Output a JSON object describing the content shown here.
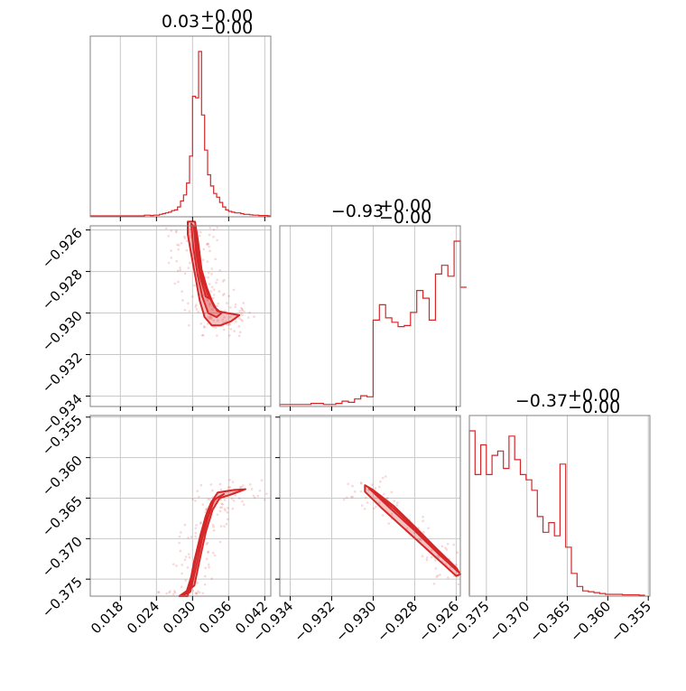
{
  "chart_data": {
    "type": "corner",
    "color": "#d62728",
    "grid": true,
    "parameters": [
      {
        "title": "0.03",
        "title_plus": "+0.00",
        "title_minus": "−0.00",
        "range": [
          0.013,
          0.043
        ],
        "ticks": [
          0.018,
          0.024,
          0.03,
          0.036,
          0.042
        ],
        "tick_labels": [
          "0.018",
          "0.024",
          "0.030",
          "0.036",
          "0.042"
        ],
        "hist": [
          [
            0.013,
            0
          ],
          [
            0.0135,
            0
          ],
          [
            0.014,
            0
          ],
          [
            0.0145,
            0
          ],
          [
            0.015,
            0
          ],
          [
            0.0155,
            0
          ],
          [
            0.016,
            0
          ],
          [
            0.0165,
            0
          ],
          [
            0.017,
            0
          ],
          [
            0.0175,
            0
          ],
          [
            0.018,
            0
          ],
          [
            0.0185,
            0
          ],
          [
            0.019,
            0
          ],
          [
            0.0195,
            0
          ],
          [
            0.02,
            0
          ],
          [
            0.0205,
            0
          ],
          [
            0.021,
            0
          ],
          [
            0.0215,
            0
          ],
          [
            0.022,
            1
          ],
          [
            0.0225,
            1
          ],
          [
            0.023,
            0.5
          ],
          [
            0.0235,
            1
          ],
          [
            0.024,
            1
          ],
          [
            0.0245,
            2
          ],
          [
            0.025,
            3
          ],
          [
            0.0255,
            4
          ],
          [
            0.026,
            5
          ],
          [
            0.0265,
            7
          ],
          [
            0.027,
            8
          ],
          [
            0.0275,
            12
          ],
          [
            0.028,
            20
          ],
          [
            0.0285,
            28
          ],
          [
            0.029,
            44
          ],
          [
            0.0295,
            80
          ],
          [
            0.03,
            160
          ],
          [
            0.0305,
            158
          ],
          [
            0.031,
            220
          ],
          [
            0.0315,
            135
          ],
          [
            0.032,
            88
          ],
          [
            0.0325,
            55
          ],
          [
            0.033,
            40
          ],
          [
            0.0335,
            30
          ],
          [
            0.034,
            25
          ],
          [
            0.0345,
            18
          ],
          [
            0.035,
            12
          ],
          [
            0.0355,
            8
          ],
          [
            0.036,
            6
          ],
          [
            0.0365,
            5
          ],
          [
            0.037,
            4
          ],
          [
            0.0375,
            4
          ],
          [
            0.038,
            3
          ],
          [
            0.0385,
            2
          ],
          [
            0.039,
            2
          ],
          [
            0.0395,
            1.5
          ],
          [
            0.04,
            1
          ],
          [
            0.0405,
            1
          ],
          [
            0.041,
            0.5
          ],
          [
            0.0415,
            0.5
          ],
          [
            0.042,
            0.5
          ],
          [
            0.0425,
            0
          ]
        ]
      },
      {
        "title": "−0.93",
        "title_plus": "+0.00",
        "title_minus": "−0.00",
        "range": [
          -0.9345,
          -0.9258
        ],
        "ticks": [
          -0.934,
          -0.932,
          -0.93,
          -0.928,
          -0.926
        ],
        "tick_labels": [
          "−0.934",
          "−0.932",
          "−0.930",
          "−0.928",
          "−0.926"
        ],
        "hist": [
          [
            -0.9345,
            1
          ],
          [
            -0.9342,
            1
          ],
          [
            -0.9339,
            1
          ],
          [
            -0.9336,
            1
          ],
          [
            -0.9333,
            1
          ],
          [
            -0.933,
            2
          ],
          [
            -0.9327,
            2
          ],
          [
            -0.9324,
            1
          ],
          [
            -0.9321,
            1
          ],
          [
            -0.9318,
            2
          ],
          [
            -0.9315,
            4
          ],
          [
            -0.9312,
            3
          ],
          [
            -0.9309,
            6
          ],
          [
            -0.9306,
            9
          ],
          [
            -0.9303,
            8
          ],
          [
            -0.93,
            78
          ],
          [
            -0.9297,
            92
          ],
          [
            -0.9294,
            80
          ],
          [
            -0.9291,
            76
          ],
          [
            -0.9288,
            72
          ],
          [
            -0.9285,
            73
          ],
          [
            -0.9282,
            85
          ],
          [
            -0.9279,
            105
          ],
          [
            -0.9276,
            98
          ],
          [
            -0.9273,
            78
          ],
          [
            -0.927,
            120
          ],
          [
            -0.9267,
            128
          ],
          [
            -0.9264,
            118
          ],
          [
            -0.9261,
            150
          ],
          [
            -0.9258,
            108
          ]
        ]
      },
      {
        "title": "−0.37",
        "title_plus": "+0.00",
        "title_minus": "−0.00",
        "range": [
          -0.3771,
          -0.3548
        ],
        "ticks": [
          -0.375,
          -0.37,
          -0.365,
          -0.36,
          -0.355
        ],
        "tick_labels": [
          "−0.375",
          "−0.370",
          "−0.365",
          "−0.360",
          "−0.355"
        ],
        "hist": [
          [
            -0.3771,
            188
          ],
          [
            -0.3764,
            138
          ],
          [
            -0.3757,
            172
          ],
          [
            -0.375,
            138
          ],
          [
            -0.3743,
            160
          ],
          [
            -0.3736,
            165
          ],
          [
            -0.3729,
            145
          ],
          [
            -0.3722,
            182
          ],
          [
            -0.3715,
            155
          ],
          [
            -0.3708,
            138
          ],
          [
            -0.3701,
            132
          ],
          [
            -0.3694,
            120
          ],
          [
            -0.3687,
            90
          ],
          [
            -0.368,
            72
          ],
          [
            -0.3673,
            83
          ],
          [
            -0.3666,
            68
          ],
          [
            -0.3659,
            150
          ],
          [
            -0.3652,
            55
          ],
          [
            -0.3645,
            25
          ],
          [
            -0.3638,
            10
          ],
          [
            -0.3631,
            5
          ],
          [
            -0.3624,
            4
          ],
          [
            -0.3617,
            3
          ],
          [
            -0.361,
            2
          ],
          [
            -0.3603,
            1
          ],
          [
            -0.3596,
            1
          ],
          [
            -0.3589,
            1
          ],
          [
            -0.3582,
            0.5
          ],
          [
            -0.3575,
            0.5
          ],
          [
            -0.3568,
            0.5
          ],
          [
            -0.3561,
            0
          ]
        ]
      }
    ],
    "contours": {
      "p1_p0": [
        [
          [
            0.0292,
            -0.9256
          ],
          [
            0.0304,
            -0.9256
          ],
          [
            0.0309,
            -0.9265
          ],
          [
            0.0315,
            -0.9279
          ],
          [
            0.0324,
            -0.9288
          ],
          [
            0.0332,
            -0.9294
          ],
          [
            0.0341,
            -0.9299
          ],
          [
            0.0358,
            -0.93
          ],
          [
            0.0378,
            -0.9301
          ],
          [
            0.0364,
            -0.9304
          ],
          [
            0.0346,
            -0.9306
          ],
          [
            0.0332,
            -0.9306
          ],
          [
            0.032,
            -0.9302
          ],
          [
            0.0312,
            -0.9294
          ],
          [
            0.0305,
            -0.9283
          ],
          [
            0.0298,
            -0.9272
          ],
          [
            0.0292,
            -0.9262
          ]
        ],
        [
          [
            0.0298,
            -0.9257
          ],
          [
            0.0304,
            -0.9259
          ],
          [
            0.0308,
            -0.9271
          ],
          [
            0.0316,
            -0.9283
          ],
          [
            0.0326,
            -0.9291
          ],
          [
            0.0336,
            -0.9297
          ],
          [
            0.0348,
            -0.93
          ],
          [
            0.034,
            -0.9302
          ],
          [
            0.0326,
            -0.93
          ],
          [
            0.0316,
            -0.9292
          ],
          [
            0.0308,
            -0.9281
          ],
          [
            0.0301,
            -0.9268
          ]
        ],
        [
          [
            0.0302,
            -0.9258
          ],
          [
            0.0306,
            -0.9264
          ],
          [
            0.0311,
            -0.9276
          ],
          [
            0.0318,
            -0.9285
          ],
          [
            0.0328,
            -0.9293
          ],
          [
            0.0322,
            -0.9292
          ],
          [
            0.0313,
            -0.9283
          ],
          [
            0.0306,
            -0.9271
          ]
        ]
      ],
      "p2_p0": [
        [
          [
            0.0278,
            -0.3771
          ],
          [
            0.0292,
            -0.3771
          ],
          [
            0.0302,
            -0.3731
          ],
          [
            0.0313,
            -0.3696
          ],
          [
            0.0322,
            -0.3672
          ],
          [
            0.0331,
            -0.3655
          ],
          [
            0.0342,
            -0.3643
          ],
          [
            0.0368,
            -0.364
          ],
          [
            0.0388,
            -0.3639
          ],
          [
            0.0366,
            -0.3645
          ],
          [
            0.0345,
            -0.365
          ],
          [
            0.0333,
            -0.3665
          ],
          [
            0.0322,
            -0.3692
          ],
          [
            0.0313,
            -0.3722
          ],
          [
            0.0303,
            -0.3758
          ]
        ],
        [
          [
            0.0284,
            -0.377
          ],
          [
            0.0294,
            -0.3762
          ],
          [
            0.0303,
            -0.3727
          ],
          [
            0.0314,
            -0.3695
          ],
          [
            0.0324,
            -0.367
          ],
          [
            0.0335,
            -0.3652
          ],
          [
            0.0352,
            -0.3645
          ],
          [
            0.0336,
            -0.3652
          ],
          [
            0.0326,
            -0.3673
          ],
          [
            0.0316,
            -0.37
          ],
          [
            0.0306,
            -0.3735
          ],
          [
            0.0296,
            -0.3766
          ]
        ],
        [
          [
            0.0289,
            -0.3768
          ],
          [
            0.0297,
            -0.3756
          ],
          [
            0.0306,
            -0.3723
          ],
          [
            0.0316,
            -0.3694
          ],
          [
            0.0326,
            -0.3672
          ],
          [
            0.032,
            -0.3681
          ],
          [
            0.031,
            -0.3708
          ],
          [
            0.03,
            -0.3742
          ]
        ]
      ],
      "p2_p1": [
        [
          [
            -0.9304,
            -0.3634
          ],
          [
            -0.93,
            -0.364
          ],
          [
            -0.929,
            -0.366
          ],
          [
            -0.928,
            -0.3685
          ],
          [
            -0.927,
            -0.3711
          ],
          [
            -0.926,
            -0.3736
          ],
          [
            -0.9258,
            -0.3744
          ],
          [
            -0.926,
            -0.3746
          ],
          [
            -0.9272,
            -0.3718
          ],
          [
            -0.9284,
            -0.369
          ],
          [
            -0.9296,
            -0.3662
          ],
          [
            -0.9304,
            -0.3642
          ]
        ],
        [
          [
            -0.9302,
            -0.3638
          ],
          [
            -0.929,
            -0.3663
          ],
          [
            -0.9278,
            -0.3692
          ],
          [
            -0.9266,
            -0.3722
          ],
          [
            -0.9259,
            -0.3741
          ],
          [
            -0.9268,
            -0.372
          ],
          [
            -0.928,
            -0.369
          ],
          [
            -0.9292,
            -0.3662
          ]
        ]
      ]
    }
  }
}
